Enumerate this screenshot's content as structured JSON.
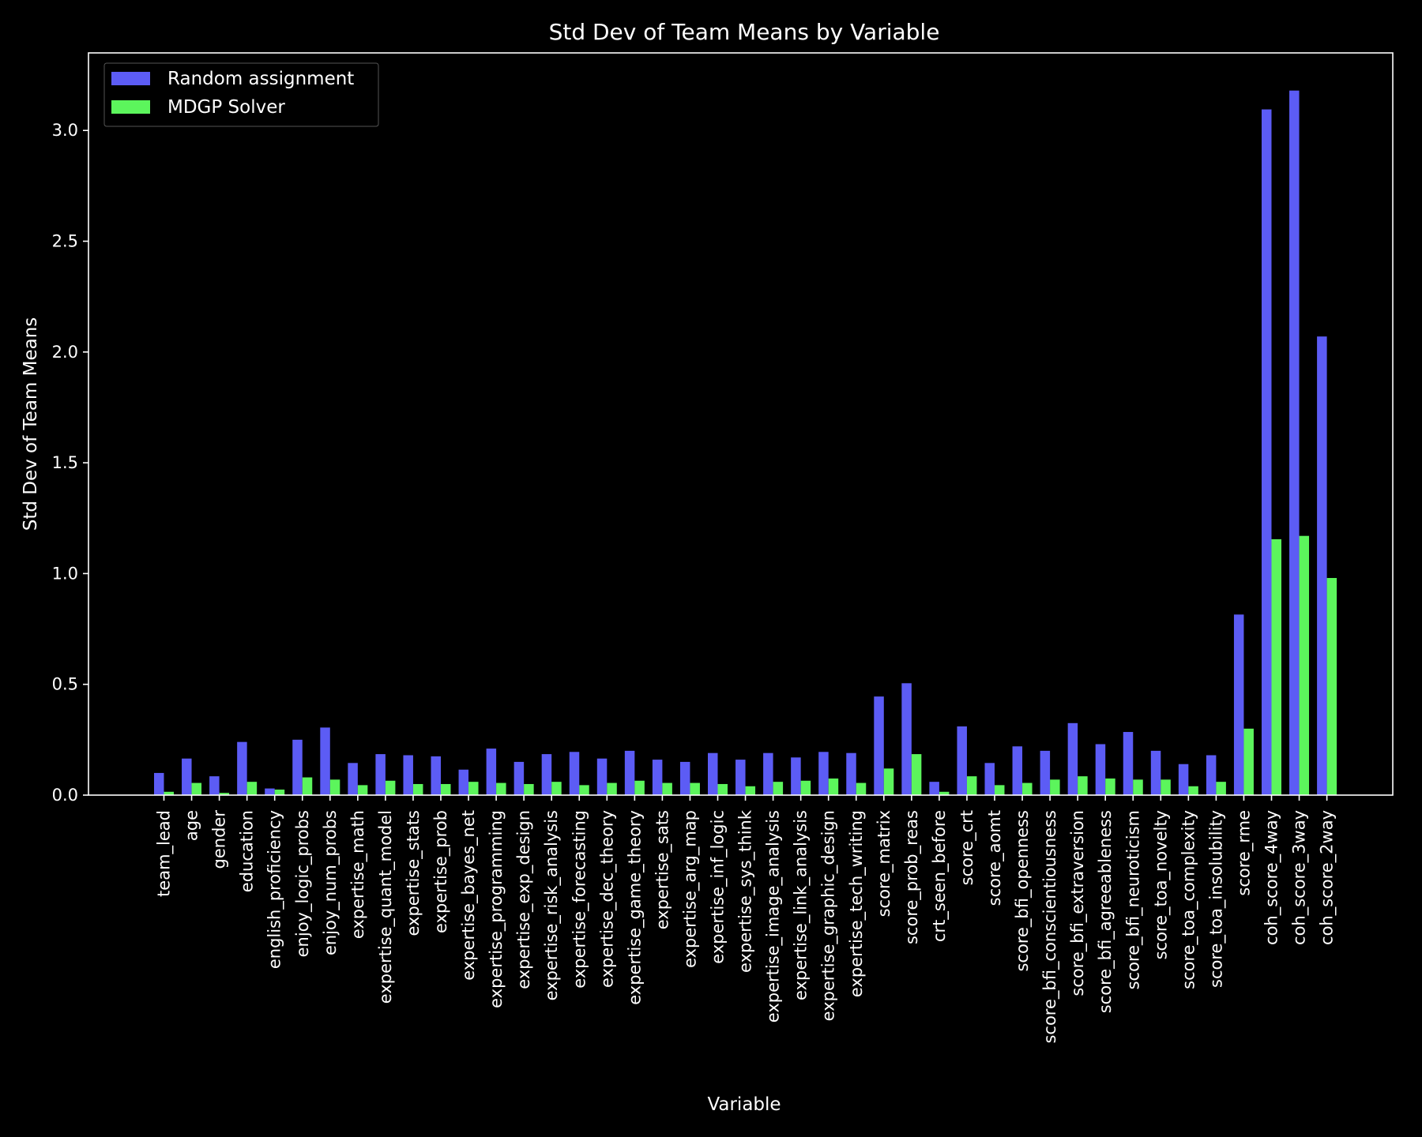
{
  "chart_data": {
    "type": "bar",
    "title": "Std Dev of Team Means by Variable",
    "xlabel": "Variable",
    "ylabel": "Std Dev of Team Means",
    "ylim": [
      0,
      3.35
    ],
    "yticks": [
      "0.0",
      "0.5",
      "1.0",
      "1.5",
      "2.0",
      "2.5",
      "3.0"
    ],
    "grid": false,
    "legend_position": "top-left",
    "background": "#000000",
    "categories": [
      "team_lead",
      "age",
      "gender",
      "education",
      "english_proficiency",
      "enjoy_logic_probs",
      "enjoy_num_probs",
      "expertise_math",
      "expertise_quant_model",
      "expertise_stats",
      "expertise_prob",
      "expertise_bayes_net",
      "expertise_programming",
      "expertise_exp_design",
      "expertise_risk_analysis",
      "expertise_forecasting",
      "expertise_dec_theory",
      "expertise_game_theory",
      "expertise_sats",
      "expertise_arg_map",
      "expertise_inf_logic",
      "expertise_sys_think",
      "expertise_image_analysis",
      "expertise_link_analysis",
      "expertise_graphic_design",
      "expertise_tech_writing",
      "score_matrix",
      "score_prob_reas",
      "crt_seen_before",
      "score_crt",
      "score_aomt",
      "score_bfi_openness",
      "score_bfi_conscientiousness",
      "score_bfi_extraversion",
      "score_bfi_agreeableness",
      "score_bfi_neuroticism",
      "score_toa_novelty",
      "score_toa_complexity",
      "score_toa_insolubility",
      "score_rme",
      "coh_score_4way",
      "coh_score_3way",
      "coh_score_2way"
    ],
    "series": [
      {
        "name": "Random assignment",
        "color": "#5c5cf5",
        "values": [
          0.1,
          0.165,
          0.085,
          0.24,
          0.03,
          0.25,
          0.305,
          0.145,
          0.185,
          0.18,
          0.175,
          0.115,
          0.21,
          0.15,
          0.185,
          0.195,
          0.165,
          0.2,
          0.16,
          0.15,
          0.19,
          0.16,
          0.19,
          0.17,
          0.195,
          0.19,
          0.445,
          0.505,
          0.06,
          0.31,
          0.145,
          0.22,
          0.2,
          0.325,
          0.23,
          0.285,
          0.2,
          0.14,
          0.18,
          0.815,
          3.095,
          3.18,
          2.07
        ]
      },
      {
        "name": "MDGP Solver",
        "color": "#5cf55c",
        "values": [
          0.015,
          0.055,
          0.01,
          0.06,
          0.025,
          0.08,
          0.07,
          0.045,
          0.065,
          0.05,
          0.05,
          0.06,
          0.055,
          0.05,
          0.06,
          0.045,
          0.055,
          0.065,
          0.055,
          0.055,
          0.05,
          0.04,
          0.06,
          0.065,
          0.075,
          0.055,
          0.12,
          0.185,
          0.015,
          0.085,
          0.045,
          0.055,
          0.07,
          0.085,
          0.075,
          0.07,
          0.07,
          0.04,
          0.06,
          0.3,
          1.155,
          1.17,
          0.98
        ]
      }
    ]
  }
}
